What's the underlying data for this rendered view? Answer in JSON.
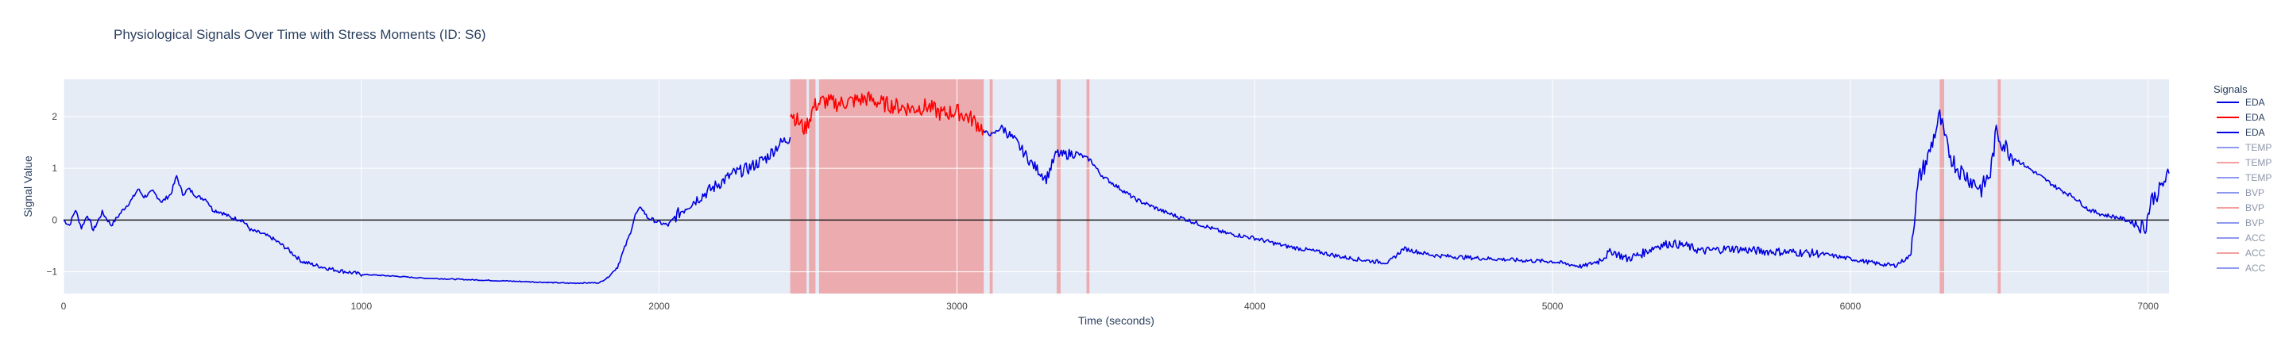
{
  "chart_data": {
    "type": "line",
    "title": "Physiological Signals Over Time with Stress Moments (ID: S6)",
    "xlabel": "Time (seconds)",
    "ylabel": "Signal Value",
    "xlim": [
      0,
      7070
    ],
    "ylim": [
      -1.42,
      2.72
    ],
    "x_ticks": [
      0,
      1000,
      2000,
      3000,
      4000,
      5000,
      6000,
      7000
    ],
    "y_ticks": [
      -1,
      0,
      1,
      2
    ],
    "grid": true,
    "legend_title": "Signals",
    "legend_placement": "right",
    "colors": {
      "plot_bg": "#e5ecf6",
      "grid": "#ffffff",
      "baseline": "#1f1f1f",
      "eda_normal": "#0000e0",
      "eda_stress": "#ff0000",
      "stress_band": "#f08080",
      "legend_dim_blue": "#8e98f0",
      "legend_dim_red": "#f5a0a0"
    },
    "stress_intervals": [
      [
        2440,
        2495
      ],
      [
        2503,
        2525
      ],
      [
        2537,
        3090
      ],
      [
        3110,
        3120
      ],
      [
        3335,
        3348
      ],
      [
        3435,
        3445
      ],
      [
        6300,
        6315
      ],
      [
        6495,
        6505
      ]
    ],
    "series": [
      {
        "name": "EDA",
        "color": "#0000e0",
        "x": [
          0,
          20,
          40,
          60,
          80,
          100,
          130,
          160,
          200,
          230,
          250,
          270,
          300,
          330,
          360,
          380,
          400,
          420,
          450,
          480,
          500,
          530,
          560,
          600,
          630,
          660,
          700,
          750,
          800,
          850,
          900,
          1000,
          1100,
          1200,
          1300,
          1400,
          1500,
          1600,
          1700,
          1800,
          1830,
          1860,
          1880,
          1900,
          1920,
          1940,
          1960,
          1980,
          2000,
          2030,
          2060,
          2100,
          2150,
          2200,
          2250,
          2300,
          2330,
          2360,
          2400,
          2440
        ],
        "y": [
          0.0,
          -0.1,
          0.2,
          -0.15,
          0.1,
          -0.2,
          0.15,
          -0.1,
          0.2,
          0.4,
          0.6,
          0.45,
          0.55,
          0.35,
          0.5,
          0.85,
          0.5,
          0.6,
          0.45,
          0.4,
          0.2,
          0.15,
          0.05,
          0.0,
          -0.2,
          -0.25,
          -0.35,
          -0.55,
          -0.8,
          -0.88,
          -0.95,
          -1.05,
          -1.08,
          -1.12,
          -1.14,
          -1.16,
          -1.18,
          -1.2,
          -1.22,
          -1.21,
          -1.1,
          -0.9,
          -0.6,
          -0.3,
          0.1,
          0.25,
          0.05,
          0.0,
          -0.05,
          -0.1,
          0.1,
          0.3,
          0.5,
          0.7,
          0.9,
          1.0,
          1.1,
          1.2,
          1.45,
          1.6
        ]
      },
      {
        "name": "EDA",
        "color": "#ff0000",
        "x": [
          2440,
          2460,
          2490,
          2520,
          2550,
          2600,
          2650,
          2700,
          2750,
          2800,
          2850,
          2900,
          2950,
          3000,
          3050,
          3090
        ],
        "y": [
          2.1,
          1.95,
          1.75,
          2.2,
          2.3,
          2.25,
          2.3,
          2.35,
          2.25,
          2.2,
          2.15,
          2.2,
          2.05,
          2.1,
          1.95,
          1.75
        ]
      },
      {
        "name": "EDA",
        "color": "#0000e0",
        "x": [
          3090,
          3120,
          3150,
          3200,
          3250,
          3300,
          3335,
          3350,
          3400,
          3450,
          3480,
          3500,
          3550,
          3600,
          3700,
          3800,
          3900,
          4000,
          4100,
          4200,
          4300,
          4400,
          4450,
          4500,
          4550,
          4600,
          4700,
          4800,
          4900,
          5000,
          5050,
          5100,
          5150,
          5200,
          5250,
          5300,
          5350,
          5400,
          5450,
          5500,
          5600,
          5700,
          5800,
          5900,
          6000,
          6050,
          6100,
          6150,
          6200,
          6230,
          6260,
          6280,
          6300,
          6320,
          6340,
          6360,
          6400,
          6440,
          6470,
          6490,
          6510,
          6550,
          6600,
          6650,
          6700,
          6750,
          6800,
          6850,
          6900,
          6950,
          6990,
          7000,
          7010,
          7030,
          7050,
          7070
        ],
        "y": [
          1.7,
          1.65,
          1.8,
          1.5,
          1.1,
          0.8,
          1.3,
          1.25,
          1.3,
          1.15,
          0.9,
          0.8,
          0.6,
          0.4,
          0.15,
          -0.05,
          -0.25,
          -0.35,
          -0.5,
          -0.6,
          -0.72,
          -0.8,
          -0.82,
          -0.55,
          -0.62,
          -0.68,
          -0.72,
          -0.75,
          -0.78,
          -0.8,
          -0.85,
          -0.9,
          -0.8,
          -0.6,
          -0.75,
          -0.65,
          -0.5,
          -0.45,
          -0.5,
          -0.6,
          -0.55,
          -0.6,
          -0.62,
          -0.65,
          -0.75,
          -0.8,
          -0.85,
          -0.88,
          -0.7,
          0.8,
          1.2,
          1.6,
          2.0,
          1.5,
          1.2,
          1.0,
          0.8,
          0.6,
          0.9,
          1.7,
          1.5,
          1.2,
          1.0,
          0.8,
          0.6,
          0.45,
          0.2,
          0.1,
          0.05,
          -0.05,
          -0.15,
          0.1,
          0.4,
          0.5,
          0.7,
          0.9
        ]
      }
    ],
    "legend": [
      {
        "label": "EDA",
        "color": "#0000e0",
        "dim": false
      },
      {
        "label": "EDA",
        "color": "#ff0000",
        "dim": false
      },
      {
        "label": "EDA",
        "color": "#0000e0",
        "dim": false
      },
      {
        "label": "TEMP",
        "color": "#8e98f0",
        "dim": true
      },
      {
        "label": "TEMP",
        "color": "#f5a0a0",
        "dim": true
      },
      {
        "label": "TEMP",
        "color": "#8e98f0",
        "dim": true
      },
      {
        "label": "BVP",
        "color": "#8e98f0",
        "dim": true
      },
      {
        "label": "BVP",
        "color": "#f5a0a0",
        "dim": true
      },
      {
        "label": "BVP",
        "color": "#8e98f0",
        "dim": true
      },
      {
        "label": "ACC",
        "color": "#8e98f0",
        "dim": true
      },
      {
        "label": "ACC",
        "color": "#f5a0a0",
        "dim": true
      },
      {
        "label": "ACC",
        "color": "#8e98f0",
        "dim": true
      }
    ]
  }
}
